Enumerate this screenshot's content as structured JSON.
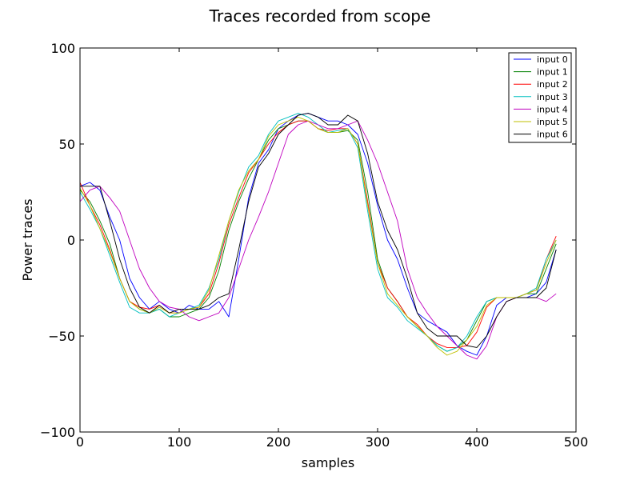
{
  "chart_data": {
    "type": "line",
    "title": "Traces recorded from scope",
    "xlabel": "samples",
    "ylabel": "Power traces",
    "xlim": [
      0,
      500
    ],
    "ylim": [
      -100,
      100
    ],
    "xticks": [
      0,
      100,
      200,
      300,
      400,
      500
    ],
    "yticks": [
      -100,
      -50,
      0,
      50,
      100
    ],
    "xtick_labels": [
      "0",
      "100",
      "200",
      "300",
      "400",
      "500"
    ],
    "ytick_labels": [
      "−100",
      "−50",
      "0",
      "50",
      "100"
    ],
    "grid": false,
    "legend_position": "top-right",
    "series": [
      {
        "name": "input 0",
        "color": "#0000ff",
        "x": [
          0,
          10,
          20,
          30,
          40,
          50,
          60,
          70,
          80,
          90,
          100,
          110,
          120,
          130,
          140,
          150,
          160,
          170,
          180,
          190,
          200,
          210,
          220,
          230,
          240,
          250,
          260,
          270,
          280,
          290,
          300,
          310,
          320,
          330,
          340,
          350,
          360,
          370,
          380,
          390,
          400,
          410,
          420,
          430,
          440,
          450,
          460,
          470,
          480
        ],
        "values": [
          28,
          30,
          26,
          12,
          0,
          -20,
          -30,
          -36,
          -32,
          -36,
          -38,
          -34,
          -36,
          -36,
          -32,
          -40,
          -10,
          22,
          40,
          47,
          58,
          62,
          65,
          66,
          64,
          62,
          62,
          60,
          55,
          40,
          18,
          0,
          -10,
          -25,
          -38,
          -42,
          -45,
          -48,
          -55,
          -58,
          -60,
          -50,
          -34,
          -30,
          -30,
          -30,
          -28,
          -22,
          -5
        ]
      },
      {
        "name": "input 1",
        "color": "#008000",
        "x": [
          0,
          10,
          20,
          30,
          40,
          50,
          60,
          70,
          80,
          90,
          100,
          110,
          120,
          130,
          140,
          150,
          160,
          170,
          180,
          190,
          200,
          210,
          220,
          230,
          240,
          250,
          260,
          270,
          280,
          290,
          300,
          310,
          320,
          330,
          340,
          350,
          360,
          370,
          380,
          390,
          400,
          410,
          420,
          430,
          440,
          450,
          460,
          470,
          480
        ],
        "values": [
          26,
          20,
          10,
          -2,
          -20,
          -32,
          -36,
          -38,
          -36,
          -40,
          -40,
          -38,
          -36,
          -30,
          -16,
          5,
          20,
          32,
          42,
          52,
          58,
          60,
          62,
          62,
          58,
          56,
          56,
          57,
          52,
          25,
          -10,
          -25,
          -32,
          -40,
          -45,
          -50,
          -55,
          -58,
          -56,
          -52,
          -42,
          -32,
          -30,
          -30,
          -30,
          -28,
          -28,
          -15,
          -2
        ]
      },
      {
        "name": "input 2",
        "color": "#ff0000",
        "x": [
          0,
          10,
          20,
          30,
          40,
          50,
          60,
          70,
          80,
          90,
          100,
          110,
          120,
          130,
          140,
          150,
          160,
          170,
          180,
          190,
          200,
          210,
          220,
          230,
          240,
          250,
          260,
          270,
          280,
          290,
          300,
          310,
          320,
          330,
          340,
          350,
          360,
          370,
          380,
          390,
          400,
          410,
          420,
          430,
          440,
          450,
          460,
          470,
          480
        ],
        "values": [
          30,
          18,
          8,
          -5,
          -20,
          -32,
          -35,
          -36,
          -34,
          -38,
          -38,
          -36,
          -35,
          -28,
          -12,
          8,
          22,
          35,
          42,
          50,
          56,
          60,
          62,
          62,
          58,
          57,
          58,
          58,
          50,
          20,
          -12,
          -25,
          -32,
          -40,
          -44,
          -50,
          -54,
          -56,
          -56,
          -55,
          -48,
          -35,
          -30,
          -30,
          -30,
          -28,
          -26,
          -10,
          2
        ]
      },
      {
        "name": "input 3",
        "color": "#00bfbf",
        "x": [
          0,
          10,
          20,
          30,
          40,
          50,
          60,
          70,
          80,
          90,
          100,
          110,
          120,
          130,
          140,
          150,
          160,
          170,
          180,
          190,
          200,
          210,
          220,
          230,
          240,
          250,
          260,
          270,
          280,
          290,
          300,
          310,
          320,
          330,
          340,
          350,
          360,
          370,
          380,
          390,
          400,
          410,
          420,
          430,
          440,
          450,
          460,
          470,
          480
        ],
        "values": [
          25,
          16,
          6,
          -8,
          -22,
          -35,
          -38,
          -38,
          -36,
          -40,
          -38,
          -36,
          -34,
          -25,
          -10,
          10,
          25,
          38,
          44,
          55,
          62,
          64,
          66,
          64,
          60,
          56,
          57,
          58,
          48,
          15,
          -15,
          -30,
          -35,
          -42,
          -46,
          -50,
          -55,
          -58,
          -56,
          -50,
          -40,
          -32,
          -30,
          -30,
          -30,
          -28,
          -25,
          -10,
          0
        ]
      },
      {
        "name": "input 4",
        "color": "#bf00bf",
        "x": [
          0,
          10,
          20,
          30,
          40,
          50,
          60,
          70,
          80,
          90,
          100,
          110,
          120,
          130,
          140,
          150,
          160,
          170,
          180,
          190,
          200,
          210,
          220,
          230,
          240,
          250,
          260,
          270,
          280,
          290,
          300,
          310,
          320,
          330,
          340,
          350,
          360,
          370,
          380,
          390,
          400,
          410,
          420,
          430,
          440,
          450,
          460,
          470,
          480
        ],
        "values": [
          20,
          26,
          28,
          22,
          15,
          0,
          -15,
          -25,
          -32,
          -35,
          -36,
          -40,
          -42,
          -40,
          -38,
          -30,
          -15,
          0,
          12,
          25,
          40,
          55,
          60,
          62,
          60,
          58,
          58,
          60,
          62,
          52,
          40,
          25,
          10,
          -15,
          -30,
          -38,
          -45,
          -50,
          -55,
          -60,
          -62,
          -55,
          -40,
          -32,
          -30,
          -30,
          -30,
          -32,
          -28
        ]
      },
      {
        "name": "input 5",
        "color": "#bfbf00",
        "x": [
          0,
          10,
          20,
          30,
          40,
          50,
          60,
          70,
          80,
          90,
          100,
          110,
          120,
          130,
          140,
          150,
          160,
          170,
          180,
          190,
          200,
          210,
          220,
          230,
          240,
          250,
          260,
          270,
          280,
          290,
          300,
          310,
          320,
          330,
          340,
          350,
          360,
          370,
          380,
          390,
          400,
          410,
          420,
          430,
          440,
          450,
          460,
          470,
          480
        ],
        "values": [
          27,
          18,
          6,
          -6,
          -20,
          -32,
          -36,
          -38,
          -35,
          -38,
          -38,
          -36,
          -35,
          -26,
          -8,
          10,
          26,
          36,
          42,
          54,
          60,
          62,
          64,
          62,
          58,
          56,
          56,
          58,
          50,
          18,
          -12,
          -28,
          -34,
          -40,
          -45,
          -50,
          -56,
          -60,
          -58,
          -52,
          -45,
          -34,
          -30,
          -30,
          -30,
          -28,
          -26,
          -12,
          0
        ]
      },
      {
        "name": "input 6",
        "color": "#000000",
        "x": [
          0,
          10,
          20,
          30,
          40,
          50,
          60,
          70,
          80,
          90,
          100,
          110,
          120,
          130,
          140,
          150,
          160,
          170,
          180,
          190,
          200,
          210,
          220,
          230,
          240,
          250,
          260,
          270,
          280,
          290,
          300,
          310,
          320,
          330,
          340,
          350,
          360,
          370,
          380,
          390,
          400,
          410,
          420,
          430,
          440,
          450,
          460,
          470,
          480
        ],
        "values": [
          28,
          28,
          28,
          10,
          -10,
          -25,
          -35,
          -38,
          -34,
          -38,
          -36,
          -36,
          -36,
          -34,
          -30,
          -28,
          -5,
          20,
          38,
          45,
          55,
          60,
          65,
          66,
          64,
          60,
          60,
          65,
          62,
          45,
          20,
          5,
          -5,
          -20,
          -38,
          -46,
          -50,
          -50,
          -50,
          -55,
          -56,
          -50,
          -40,
          -32,
          -30,
          -30,
          -30,
          -25,
          -5
        ]
      }
    ]
  }
}
